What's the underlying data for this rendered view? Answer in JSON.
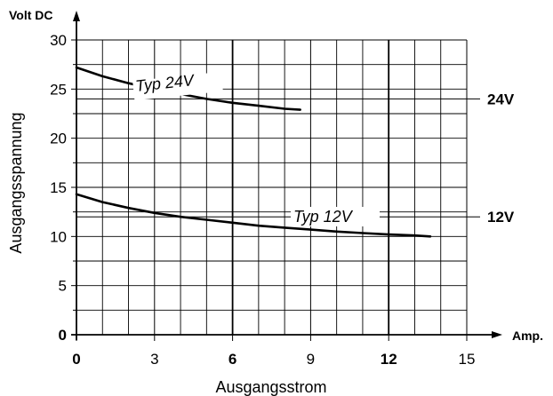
{
  "chart_data": {
    "type": "line",
    "ylabel_unit": "Volt DC",
    "ylabel": "Ausgangsspannung",
    "xlabel": "Ausgangsstrom",
    "xunit": "Amp.",
    "xlim": [
      0,
      15
    ],
    "ylim": [
      0,
      30
    ],
    "x_ticks": [
      "0",
      "3",
      "6",
      "9",
      "12",
      "15"
    ],
    "x_ticks_bold": [
      "0",
      "6",
      "12"
    ],
    "y_ticks": [
      "0",
      "5",
      "10",
      "15",
      "20",
      "25",
      "30"
    ],
    "y_ticks_bold": [
      "0"
    ],
    "grid": true,
    "grid_minor_x_step": 1,
    "grid_minor_y_step": 2.5,
    "reference_lines": [
      {
        "label": "24V",
        "y": 24
      },
      {
        "label": "12V",
        "y": 12
      }
    ],
    "series": [
      {
        "name": "Typ 24V",
        "x": [
          0,
          1,
          2,
          3,
          4,
          5,
          6,
          7,
          8,
          8.6
        ],
        "y": [
          27.2,
          26.3,
          25.6,
          25.0,
          24.5,
          24.0,
          23.6,
          23.3,
          23.0,
          22.9
        ]
      },
      {
        "name": "Typ 12V",
        "x": [
          0,
          1,
          2,
          3,
          4,
          5,
          6,
          7,
          8,
          9,
          10,
          11,
          12,
          13,
          13.6
        ],
        "y": [
          14.3,
          13.5,
          12.9,
          12.4,
          12.0,
          11.7,
          11.4,
          11.1,
          10.9,
          10.7,
          10.5,
          10.35,
          10.2,
          10.1,
          10.0
        ]
      }
    ]
  }
}
